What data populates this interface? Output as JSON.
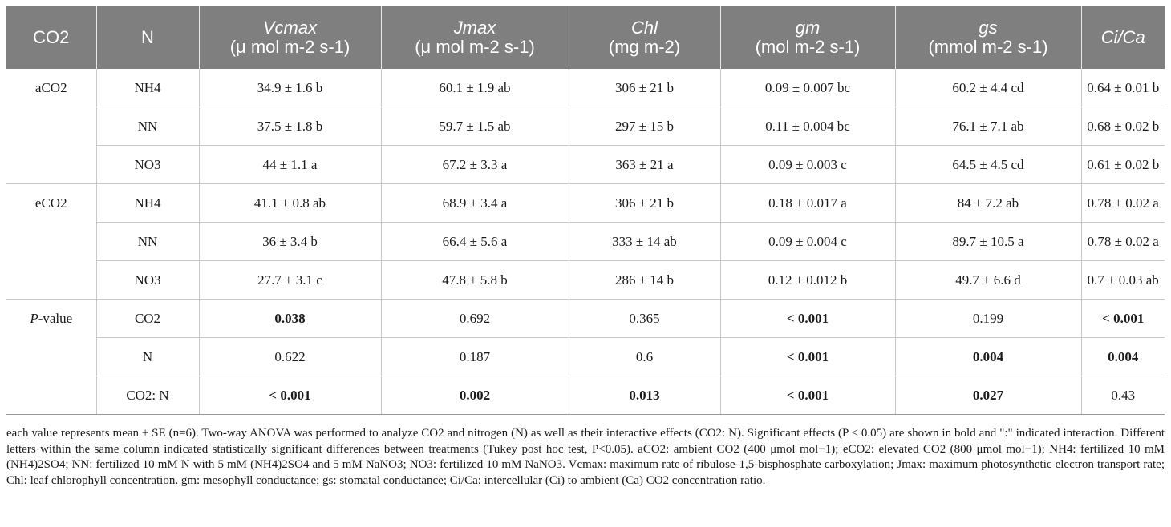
{
  "header": {
    "col_co2": "CO2",
    "col_n": "N",
    "col_vcmax_sym": "Vcmax",
    "col_vcmax_unit": "(μ mol m-2 s-1)",
    "col_jmax_sym": "Jmax",
    "col_jmax_unit": "(μ mol m-2 s-1)",
    "col_chl_sym": "Chl",
    "col_chl_unit": "(mg m-2)",
    "col_gm_sym": "gm",
    "col_gm_unit": "(mol m-2 s-1)",
    "col_gs_sym": "gs",
    "col_gs_unit": "(mmol m-2 s-1)",
    "col_cica": "Ci/Ca"
  },
  "rows": [
    {
      "co2": "aCO2",
      "n": "NH4",
      "vcmax": "34.9 ± 1.6 b",
      "jmax": "60.1 ± 1.9 ab",
      "chl": "306 ± 21 b",
      "gm": "0.09 ± 0.007 bc",
      "gs": "60.2 ± 4.4 cd",
      "cica": "0.64 ± 0.01 b"
    },
    {
      "co2": "",
      "n": "NN",
      "vcmax": "37.5 ± 1.8 b",
      "jmax": "59.7 ± 1.5 ab",
      "chl": "297 ± 15 b",
      "gm": "0.11 ± 0.004 bc",
      "gs": "76.1 ± 7.1 ab",
      "cica": "0.68 ± 0.02 b"
    },
    {
      "co2": "",
      "n": "NO3",
      "vcmax": "44 ± 1.1 a",
      "jmax": "67.2 ± 3.3 a",
      "chl": "363 ± 21 a",
      "gm": "0.09 ± 0.003 c",
      "gs": "64.5 ± 4.5 cd",
      "cica": "0.61 ± 0.02 b"
    },
    {
      "co2": "eCO2",
      "n": "NH4",
      "vcmax": "41.1 ± 0.8 ab",
      "jmax": "68.9 ± 3.4 a",
      "chl": "306 ± 21 b",
      "gm": "0.18 ± 0.017 a",
      "gs": "84 ± 7.2 ab",
      "cica": "0.78 ± 0.02 a"
    },
    {
      "co2": "",
      "n": "NN",
      "vcmax": "36 ± 3.4 b",
      "jmax": "66.4 ± 5.6 a",
      "chl": "333 ± 14 ab",
      "gm": "0.09 ± 0.004 c",
      "gs": "89.7 ± 10.5 a",
      "cica": "0.78 ± 0.02 a"
    },
    {
      "co2": "",
      "n": "NO3",
      "vcmax": "27.7 ± 3.1 c",
      "jmax": "47.8 ± 5.8 b",
      "chl": "286 ± 14 b",
      "gm": "0.12 ± 0.012 b",
      "gs": "49.7 ± 6.6 d",
      "cica": "0.7 ± 0.03 ab"
    }
  ],
  "pvalues": {
    "label_p": "P",
    "label_rest": "-value",
    "rows": [
      {
        "factor": "CO2",
        "vcmax": "0.038",
        "jmax": "0.692",
        "chl": "0.365",
        "gm": "< 0.001",
        "gs": "0.199",
        "cica": "< 0.001"
      },
      {
        "factor": "N",
        "vcmax": "0.622",
        "jmax": "0.187",
        "chl": "0.6",
        "gm": "< 0.001",
        "gs": "0.004",
        "cica": "0.004"
      },
      {
        "factor": "CO2: N",
        "vcmax": "< 0.001",
        "jmax": "0.002",
        "chl": "0.013",
        "gm": "< 0.001",
        "gs": "0.027",
        "cica": "0.43"
      }
    ]
  },
  "footnote": "each value represents mean ± SE (n=6). Two-way ANOVA was performed to analyze CO2 and nitrogen (N) as well as their interactive effects (CO2: N). Significant effects (P ≤ 0.05) are shown in bold and \":\" indicated interaction. Different letters within the same column indicated statistically significant differences between treatments (Tukey post hoc test, P<0.05). aCO2: ambient CO2 (400 μmol mol−1); eCO2: elevated CO2 (800 μmol mol−1); NH4: fertilized 10 mM (NH4)2SO4; NN: fertilized 10 mM N with 5 mM (NH4)2SO4 and 5 mM NaNO3; NO3: fertilized 10 mM NaNO3. Vcmax: maximum rate of ribulose-1,5-bisphosphate carboxylation; Jmax: maximum photosynthetic electron transport rate; Chl: leaf chlorophyll concentration. gm: mesophyll conductance; gs: stomatal conductance; Ci/Ca: intercellular (Ci) to ambient (Ca) CO2 concentration ratio."
}
